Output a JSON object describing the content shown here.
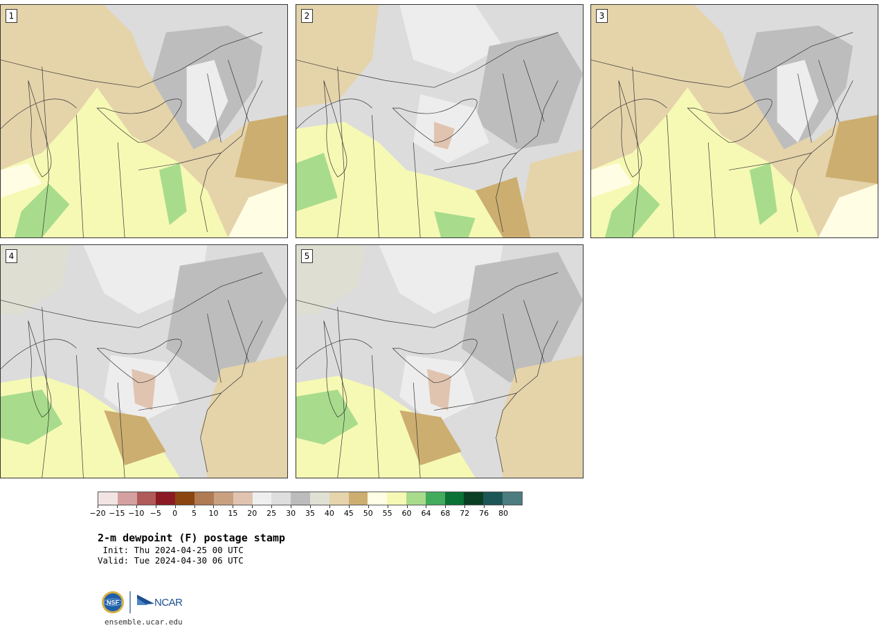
{
  "panels": [
    {
      "id": "1",
      "variant": "warm"
    },
    {
      "id": "2",
      "variant": "mixed"
    },
    {
      "id": "3",
      "variant": "warm"
    },
    {
      "id": "4",
      "variant": "cool"
    },
    {
      "id": "5",
      "variant": "cool"
    }
  ],
  "colorbar": {
    "colors": [
      "#f3e4e4",
      "#d4a0a0",
      "#b05a5a",
      "#8c1a24",
      "#8b4510",
      "#b07a52",
      "#c9a080",
      "#e0c4b0",
      "#efefef",
      "#dedede",
      "#bcbcbc",
      "#e0e0d4",
      "#e6d4ac",
      "#ccae70",
      "#fffee4",
      "#f6f9b4",
      "#a8dc8c",
      "#42ac5c",
      "#0a7234",
      "#0a3f24",
      "#1c5656",
      "#4d7c80"
    ],
    "ticks": [
      "−20",
      "−15",
      "−10",
      "−5",
      "0",
      "5",
      "10",
      "15",
      "20",
      "25",
      "30",
      "35",
      "40",
      "45",
      "50",
      "55",
      "60",
      "64",
      "68",
      "72",
      "76",
      "80"
    ]
  },
  "title": "2-m dewpoint (F) postage stamp",
  "init_line": " Init: Thu 2024-04-25 00 UTC",
  "valid_line": "Valid: Tue 2024-04-30 06 UTC",
  "logos": {
    "nsf": "NSF",
    "ncar": "NCAR"
  },
  "url": "ensemble.ucar.edu",
  "fills": {
    "grey_light": "#ededed",
    "grey_mid": "#dcdcdc",
    "grey_dark": "#bdbdbd",
    "grey_tan": "#dfded2",
    "tan": "#e5d3aa",
    "tan_dark": "#ccae70",
    "yellow_pale": "#fffee4",
    "yellow": "#f6f9b4",
    "green": "#a8dc8c",
    "pink": "#e0c4b0"
  }
}
